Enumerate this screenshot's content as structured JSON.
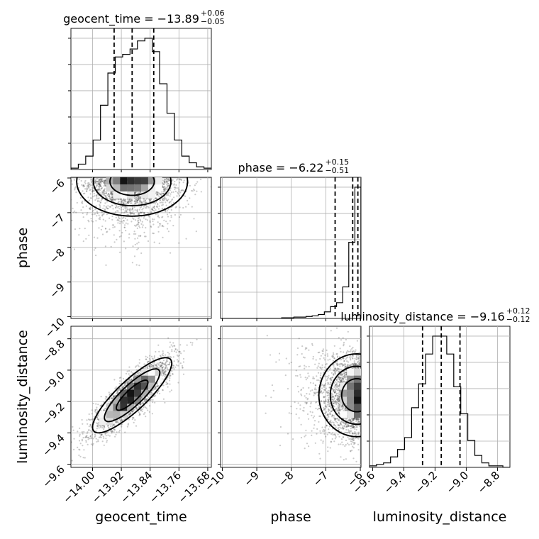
{
  "chart_data": {
    "type": "scatter",
    "subtype": "corner-plot",
    "parameters": [
      {
        "name": "geocent_time",
        "median": -13.89,
        "lower_quantile": -13.94,
        "upper_quantile": -13.83,
        "title_main": "geocent_time = −13.89",
        "title_sup": "+0.06",
        "title_sub": "−0.05",
        "axis_label": "geocent_time",
        "range": [
          -14.06,
          -13.67
        ],
        "ticks": [
          -14.0,
          -13.92,
          -13.84,
          -13.76,
          -13.68
        ],
        "tick_labels": [
          "−14.00",
          "−13.92",
          "−13.84",
          "−13.76",
          "−13.68"
        ],
        "histogram": [
          1,
          4,
          10,
          22,
          48,
          72,
          84,
          86,
          90,
          96,
          98,
          88,
          64,
          42,
          22,
          10,
          5,
          2,
          1
        ]
      },
      {
        "name": "phase",
        "median": -6.22,
        "lower_quantile": -6.73,
        "upper_quantile": -6.07,
        "title_main": "phase = −6.22",
        "title_sup": "+0.15",
        "title_sub": "−0.51",
        "axis_label": "phase",
        "range": [
          -10.05,
          -5.98
        ],
        "ticks": [
          -10,
          -9,
          -8,
          -7,
          -6
        ],
        "tick_labels": [
          "−10",
          "−9",
          "−8",
          "−7",
          "−6"
        ],
        "histogram": [
          0,
          0,
          0,
          0,
          0,
          0,
          0,
          0,
          0,
          0,
          0.5,
          0.5,
          1,
          1,
          1.5,
          2,
          3,
          5,
          9,
          12,
          24,
          58,
          100
        ]
      },
      {
        "name": "luminosity_distance",
        "median": -9.16,
        "lower_quantile": -9.28,
        "upper_quantile": -9.04,
        "title_main": "luminosity_distance = −9.16",
        "title_sup": "+0.12",
        "title_sub": "−0.12",
        "axis_label": "luminosity_distance",
        "range": [
          -9.62,
          -8.72
        ],
        "ticks": [
          -9.6,
          -9.4,
          -9.2,
          -9.0,
          -8.8
        ],
        "tick_labels": [
          "−9.6",
          "−9.4",
          "−9.2",
          "−9.0",
          "−8.8"
        ],
        "histogram": [
          1,
          2,
          3,
          7,
          12,
          20,
          40,
          56,
          76,
          88,
          88,
          76,
          54,
          36,
          18,
          8,
          3,
          1,
          1,
          0
        ]
      }
    ],
    "pairs": [
      {
        "x": "geocent_time",
        "y": "phase",
        "correlation": 0.0
      },
      {
        "x": "geocent_time",
        "y": "luminosity_distance",
        "correlation": 0.85
      },
      {
        "x": "phase",
        "y": "luminosity_distance",
        "correlation": 0.0
      }
    ],
    "grid": true,
    "quantiles": [
      0.16,
      0.5,
      0.84
    ]
  }
}
